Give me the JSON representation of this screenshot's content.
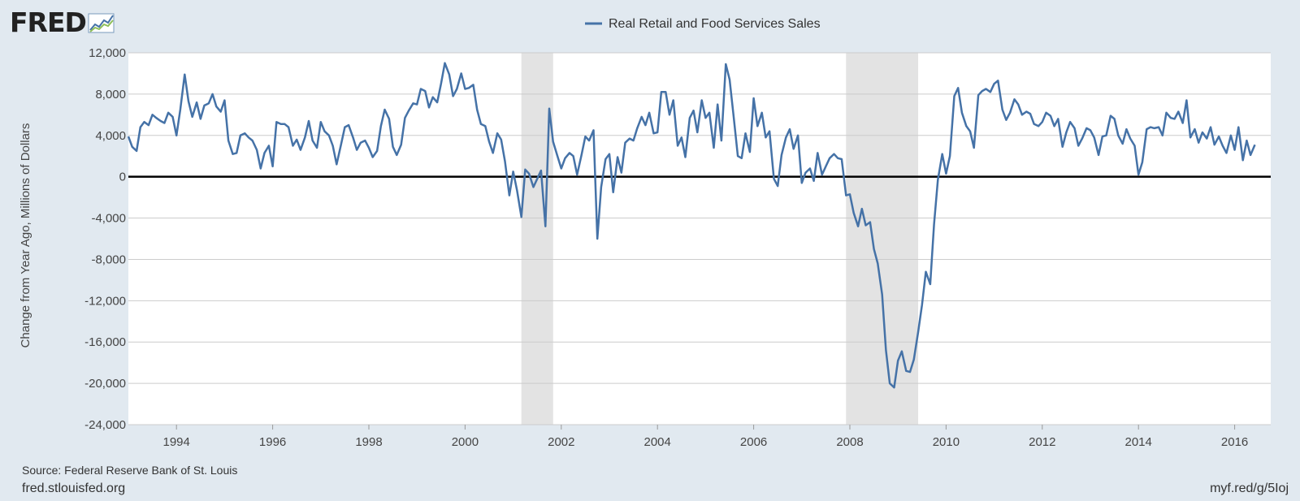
{
  "brand": {
    "logo_text": "FRED",
    "logo_icon": "trend-chart-icon"
  },
  "footer": {
    "source": "Source: Federal Reserve Bank of St. Louis",
    "site": "fred.stlouisfed.org",
    "short_url": "myf.red/g/5Ioj"
  },
  "colors": {
    "series": "#4572a7",
    "recession": "#e3e3e3",
    "grid": "#cccccc",
    "zero_line": "#000000",
    "background": "#e1e9f0"
  },
  "chart_data": {
    "type": "line",
    "title": "",
    "legend": [
      "Real Retail and Food Services Sales"
    ],
    "legend_position": "top-center",
    "xlabel": "",
    "ylabel": "Change from Year Ago, Millions of Dollars",
    "xlim": [
      1993.0,
      2016.75
    ],
    "ylim": [
      -24000,
      12000
    ],
    "x_ticks": [
      1994,
      1996,
      1998,
      2000,
      2002,
      2004,
      2006,
      2008,
      2010,
      2012,
      2014,
      2016
    ],
    "y_ticks": [
      -24000,
      -20000,
      -16000,
      -12000,
      -8000,
      -4000,
      0,
      4000,
      8000,
      12000
    ],
    "y_tick_labels": [
      "-24,000",
      "-20,000",
      "-16,000",
      "-12,000",
      "-8,000",
      "-4,000",
      "0",
      "4,000",
      "8,000",
      "12,000"
    ],
    "grid": true,
    "recessions": [
      [
        2001.17,
        2001.83
      ],
      [
        2007.92,
        2009.42
      ]
    ],
    "series": [
      {
        "name": "Real Retail and Food Services Sales",
        "points": [
          [
            1993.0,
            3900
          ],
          [
            1993.08,
            2900
          ],
          [
            1993.17,
            2500
          ],
          [
            1993.25,
            4800
          ],
          [
            1993.33,
            5300
          ],
          [
            1993.42,
            5000
          ],
          [
            1993.5,
            6000
          ],
          [
            1993.58,
            5700
          ],
          [
            1993.67,
            5400
          ],
          [
            1993.75,
            5200
          ],
          [
            1993.83,
            6200
          ],
          [
            1993.92,
            5800
          ],
          [
            1994.0,
            4000
          ],
          [
            1994.08,
            6500
          ],
          [
            1994.17,
            9900
          ],
          [
            1994.25,
            7300
          ],
          [
            1994.33,
            5800
          ],
          [
            1994.42,
            7200
          ],
          [
            1994.5,
            5600
          ],
          [
            1994.58,
            6900
          ],
          [
            1994.67,
            7100
          ],
          [
            1994.75,
            8000
          ],
          [
            1994.83,
            6800
          ],
          [
            1994.92,
            6300
          ],
          [
            1995.0,
            7400
          ],
          [
            1995.08,
            3500
          ],
          [
            1995.17,
            2200
          ],
          [
            1995.25,
            2300
          ],
          [
            1995.33,
            4000
          ],
          [
            1995.42,
            4200
          ],
          [
            1995.5,
            3800
          ],
          [
            1995.58,
            3500
          ],
          [
            1995.67,
            2600
          ],
          [
            1995.75,
            800
          ],
          [
            1995.83,
            2300
          ],
          [
            1995.92,
            3000
          ],
          [
            1996.0,
            1000
          ],
          [
            1996.08,
            5300
          ],
          [
            1996.17,
            5100
          ],
          [
            1996.25,
            5100
          ],
          [
            1996.33,
            4800
          ],
          [
            1996.42,
            3000
          ],
          [
            1996.5,
            3600
          ],
          [
            1996.58,
            2600
          ],
          [
            1996.67,
            3800
          ],
          [
            1996.75,
            5400
          ],
          [
            1996.83,
            3500
          ],
          [
            1996.92,
            2800
          ],
          [
            1997.0,
            5300
          ],
          [
            1997.08,
            4400
          ],
          [
            1997.17,
            4000
          ],
          [
            1997.25,
            3000
          ],
          [
            1997.33,
            1200
          ],
          [
            1997.42,
            3100
          ],
          [
            1997.5,
            4800
          ],
          [
            1997.58,
            5000
          ],
          [
            1997.67,
            3800
          ],
          [
            1997.75,
            2600
          ],
          [
            1997.83,
            3300
          ],
          [
            1997.92,
            3500
          ],
          [
            1998.0,
            2800
          ],
          [
            1998.08,
            1900
          ],
          [
            1998.17,
            2500
          ],
          [
            1998.25,
            4900
          ],
          [
            1998.33,
            6500
          ],
          [
            1998.42,
            5600
          ],
          [
            1998.5,
            2900
          ],
          [
            1998.58,
            2100
          ],
          [
            1998.67,
            3100
          ],
          [
            1998.75,
            5700
          ],
          [
            1998.83,
            6400
          ],
          [
            1998.92,
            7100
          ],
          [
            1999.0,
            7000
          ],
          [
            1999.08,
            8500
          ],
          [
            1999.17,
            8300
          ],
          [
            1999.25,
            6700
          ],
          [
            1999.33,
            7700
          ],
          [
            1999.42,
            7200
          ],
          [
            1999.5,
            9000
          ],
          [
            1999.58,
            11000
          ],
          [
            1999.67,
            9900
          ],
          [
            1999.75,
            7800
          ],
          [
            1999.83,
            8500
          ],
          [
            1999.92,
            10000
          ],
          [
            2000.0,
            8500
          ],
          [
            2000.08,
            8600
          ],
          [
            2000.17,
            8900
          ],
          [
            2000.25,
            6500
          ],
          [
            2000.33,
            5100
          ],
          [
            2000.42,
            4900
          ],
          [
            2000.5,
            3400
          ],
          [
            2000.58,
            2300
          ],
          [
            2000.67,
            4200
          ],
          [
            2000.75,
            3600
          ],
          [
            2000.83,
            1500
          ],
          [
            2000.92,
            -1800
          ],
          [
            2001.0,
            500
          ],
          [
            2001.08,
            -1300
          ],
          [
            2001.17,
            -3900
          ],
          [
            2001.25,
            700
          ],
          [
            2001.33,
            300
          ],
          [
            2001.42,
            -1000
          ],
          [
            2001.5,
            -200
          ],
          [
            2001.58,
            600
          ],
          [
            2001.67,
            -4800
          ],
          [
            2001.75,
            6600
          ],
          [
            2001.83,
            3400
          ],
          [
            2001.92,
            2000
          ],
          [
            2002.0,
            800
          ],
          [
            2002.08,
            1800
          ],
          [
            2002.17,
            2300
          ],
          [
            2002.25,
            2000
          ],
          [
            2002.33,
            200
          ],
          [
            2002.42,
            2100
          ],
          [
            2002.5,
            3900
          ],
          [
            2002.58,
            3500
          ],
          [
            2002.67,
            4500
          ],
          [
            2002.75,
            -6000
          ],
          [
            2002.83,
            -1000
          ],
          [
            2002.92,
            1700
          ],
          [
            2003.0,
            2200
          ],
          [
            2003.08,
            -1500
          ],
          [
            2003.17,
            1900
          ],
          [
            2003.25,
            400
          ],
          [
            2003.33,
            3300
          ],
          [
            2003.42,
            3700
          ],
          [
            2003.5,
            3500
          ],
          [
            2003.58,
            4700
          ],
          [
            2003.67,
            5800
          ],
          [
            2003.75,
            5000
          ],
          [
            2003.83,
            6200
          ],
          [
            2003.92,
            4200
          ],
          [
            2004.0,
            4300
          ],
          [
            2004.08,
            8200
          ],
          [
            2004.17,
            8200
          ],
          [
            2004.25,
            6000
          ],
          [
            2004.33,
            7400
          ],
          [
            2004.42,
            3000
          ],
          [
            2004.5,
            3800
          ],
          [
            2004.58,
            1900
          ],
          [
            2004.67,
            5700
          ],
          [
            2004.75,
            6400
          ],
          [
            2004.83,
            4300
          ],
          [
            2004.92,
            7400
          ],
          [
            2005.0,
            5700
          ],
          [
            2005.08,
            6200
          ],
          [
            2005.17,
            2800
          ],
          [
            2005.25,
            7000
          ],
          [
            2005.33,
            3500
          ],
          [
            2005.42,
            10900
          ],
          [
            2005.5,
            9400
          ],
          [
            2005.58,
            6000
          ],
          [
            2005.67,
            2000
          ],
          [
            2005.75,
            1800
          ],
          [
            2005.83,
            4200
          ],
          [
            2005.92,
            2400
          ],
          [
            2006.0,
            7600
          ],
          [
            2006.08,
            4900
          ],
          [
            2006.17,
            6200
          ],
          [
            2006.25,
            3800
          ],
          [
            2006.33,
            4400
          ],
          [
            2006.42,
            -200
          ],
          [
            2006.5,
            -900
          ],
          [
            2006.58,
            2100
          ],
          [
            2006.67,
            3800
          ],
          [
            2006.75,
            4600
          ],
          [
            2006.83,
            2700
          ],
          [
            2006.92,
            4000
          ],
          [
            2007.0,
            -600
          ],
          [
            2007.08,
            400
          ],
          [
            2007.17,
            800
          ],
          [
            2007.25,
            -400
          ],
          [
            2007.33,
            2300
          ],
          [
            2007.42,
            200
          ],
          [
            2007.5,
            1000
          ],
          [
            2007.58,
            1800
          ],
          [
            2007.67,
            2200
          ],
          [
            2007.75,
            1800
          ],
          [
            2007.83,
            1700
          ],
          [
            2007.92,
            -1800
          ],
          [
            2008.0,
            -1700
          ],
          [
            2008.08,
            -3500
          ],
          [
            2008.17,
            -4800
          ],
          [
            2008.25,
            -3100
          ],
          [
            2008.33,
            -4700
          ],
          [
            2008.42,
            -4400
          ],
          [
            2008.5,
            -7000
          ],
          [
            2008.58,
            -8400
          ],
          [
            2008.67,
            -11400
          ],
          [
            2008.75,
            -16800
          ],
          [
            2008.83,
            -20000
          ],
          [
            2008.92,
            -20400
          ],
          [
            2009.0,
            -17800
          ],
          [
            2009.08,
            -16900
          ],
          [
            2009.17,
            -18800
          ],
          [
            2009.25,
            -18900
          ],
          [
            2009.33,
            -17700
          ],
          [
            2009.42,
            -15000
          ],
          [
            2009.5,
            -12400
          ],
          [
            2009.58,
            -9200
          ],
          [
            2009.67,
            -10400
          ],
          [
            2009.75,
            -4600
          ],
          [
            2009.83,
            -300
          ],
          [
            2009.92,
            2200
          ],
          [
            2010.0,
            300
          ],
          [
            2010.08,
            2000
          ],
          [
            2010.17,
            7800
          ],
          [
            2010.25,
            8600
          ],
          [
            2010.33,
            6200
          ],
          [
            2010.42,
            4900
          ],
          [
            2010.5,
            4400
          ],
          [
            2010.58,
            2800
          ],
          [
            2010.67,
            7900
          ],
          [
            2010.75,
            8300
          ],
          [
            2010.83,
            8500
          ],
          [
            2010.92,
            8200
          ],
          [
            2011.0,
            9000
          ],
          [
            2011.08,
            9300
          ],
          [
            2011.17,
            6500
          ],
          [
            2011.25,
            5500
          ],
          [
            2011.33,
            6200
          ],
          [
            2011.42,
            7500
          ],
          [
            2011.5,
            7000
          ],
          [
            2011.58,
            6000
          ],
          [
            2011.67,
            6300
          ],
          [
            2011.75,
            6100
          ],
          [
            2011.83,
            5100
          ],
          [
            2011.92,
            4900
          ],
          [
            2012.0,
            5300
          ],
          [
            2012.08,
            6200
          ],
          [
            2012.17,
            5900
          ],
          [
            2012.25,
            4900
          ],
          [
            2012.33,
            5600
          ],
          [
            2012.42,
            2900
          ],
          [
            2012.5,
            4300
          ],
          [
            2012.58,
            5300
          ],
          [
            2012.67,
            4700
          ],
          [
            2012.75,
            3000
          ],
          [
            2012.83,
            3700
          ],
          [
            2012.92,
            4700
          ],
          [
            2013.0,
            4500
          ],
          [
            2013.08,
            3800
          ],
          [
            2013.17,
            2100
          ],
          [
            2013.25,
            3900
          ],
          [
            2013.33,
            4000
          ],
          [
            2013.42,
            5900
          ],
          [
            2013.5,
            5600
          ],
          [
            2013.58,
            4000
          ],
          [
            2013.67,
            3200
          ],
          [
            2013.75,
            4600
          ],
          [
            2013.83,
            3700
          ],
          [
            2013.92,
            3000
          ],
          [
            2014.0,
            200
          ],
          [
            2014.08,
            1400
          ],
          [
            2014.17,
            4600
          ],
          [
            2014.25,
            4800
          ],
          [
            2014.33,
            4700
          ],
          [
            2014.42,
            4800
          ],
          [
            2014.5,
            4000
          ],
          [
            2014.58,
            6200
          ],
          [
            2014.67,
            5700
          ],
          [
            2014.75,
            5600
          ],
          [
            2014.83,
            6300
          ],
          [
            2014.92,
            5200
          ],
          [
            2015.0,
            7400
          ],
          [
            2015.08,
            3800
          ],
          [
            2015.17,
            4600
          ],
          [
            2015.25,
            3300
          ],
          [
            2015.33,
            4300
          ],
          [
            2015.42,
            3700
          ],
          [
            2015.5,
            4800
          ],
          [
            2015.58,
            3100
          ],
          [
            2015.67,
            3900
          ],
          [
            2015.75,
            3000
          ],
          [
            2015.83,
            2300
          ],
          [
            2015.92,
            4000
          ],
          [
            2016.0,
            2600
          ],
          [
            2016.08,
            4800
          ],
          [
            2016.17,
            1600
          ],
          [
            2016.25,
            3500
          ],
          [
            2016.33,
            2100
          ],
          [
            2016.42,
            3100
          ]
        ]
      }
    ]
  }
}
